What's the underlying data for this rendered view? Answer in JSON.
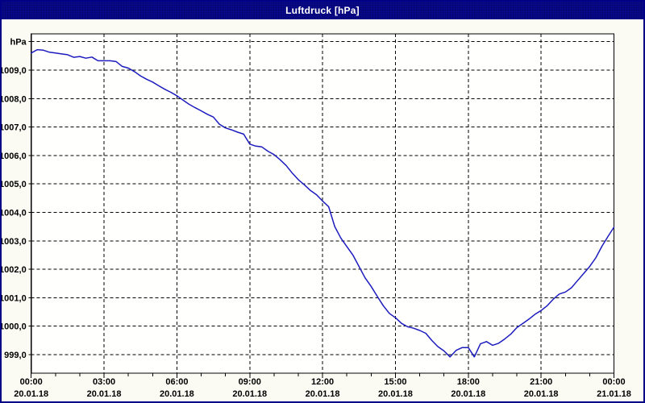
{
  "window": {
    "title": "Luftdruck [hPa]"
  },
  "colors": {
    "title_bar_bg": "#090990",
    "title_text": "#ffffff",
    "window_border": "#000086",
    "window_bg": "#fbfbf4",
    "plot_bg": "#fffffd",
    "grid": "#000000",
    "axis": "#000000",
    "line": "#1c1cbe",
    "label": "#000000"
  },
  "chart_data": {
    "type": "line",
    "title": "Luftdruck [hPa]",
    "unit_label": "hPa",
    "ylim": [
      999,
      1010
    ],
    "xlim_hours": [
      0,
      24
    ],
    "grid": "dashed",
    "legend": "none",
    "y_ticks": [
      {
        "v": 1010,
        "label": "hPa"
      },
      {
        "v": 1009,
        "label": "1009,0"
      },
      {
        "v": 1008,
        "label": "1008,0"
      },
      {
        "v": 1007,
        "label": "1007,0"
      },
      {
        "v": 1006,
        "label": "1006,0"
      },
      {
        "v": 1005,
        "label": "1005,0"
      },
      {
        "v": 1004,
        "label": "1004,0"
      },
      {
        "v": 1003,
        "label": "1003,0"
      },
      {
        "v": 1002,
        "label": "1002,0"
      },
      {
        "v": 1001,
        "label": "1001,0"
      },
      {
        "v": 1000,
        "label": "1000,0"
      },
      {
        "v": 999,
        "label": "999,0"
      }
    ],
    "x_major_ticks": [
      {
        "hour": 0,
        "time": "00:00",
        "date": "20.01.18"
      },
      {
        "hour": 3,
        "time": "03:00",
        "date": "20.01.18"
      },
      {
        "hour": 6,
        "time": "06:00",
        "date": "20.01.18"
      },
      {
        "hour": 9,
        "time": "09:00",
        "date": "20.01.18"
      },
      {
        "hour": 12,
        "time": "12:00",
        "date": "20.01.18"
      },
      {
        "hour": 15,
        "time": "15:00",
        "date": "20.01.18"
      },
      {
        "hour": 18,
        "time": "18:00",
        "date": "20.01.18"
      },
      {
        "hour": 21,
        "time": "21:00",
        "date": "20.01.18"
      },
      {
        "hour": 24,
        "time": "00:00",
        "date": "21.01.18"
      }
    ],
    "x_minor_step_hours": 1,
    "series": [
      {
        "name": "Luftdruck",
        "x_hours": [
          0,
          0.25,
          0.5,
          0.75,
          1,
          1.25,
          1.5,
          1.75,
          2,
          2.25,
          2.5,
          2.75,
          3,
          3.25,
          3.5,
          3.75,
          4,
          4.25,
          4.5,
          4.75,
          5,
          5.25,
          5.5,
          5.75,
          6,
          6.25,
          6.5,
          6.75,
          7,
          7.25,
          7.5,
          7.75,
          8,
          8.25,
          8.5,
          8.75,
          9,
          9.25,
          9.5,
          9.75,
          10,
          10.25,
          10.5,
          10.75,
          11,
          11.25,
          11.5,
          11.75,
          12,
          12.25,
          12.5,
          12.75,
          13,
          13.25,
          13.5,
          13.75,
          14,
          14.25,
          14.5,
          14.75,
          15,
          15.25,
          15.5,
          15.75,
          16,
          16.25,
          16.5,
          16.75,
          17,
          17.25,
          17.5,
          17.75,
          18,
          18.25,
          18.5,
          18.75,
          19,
          19.25,
          19.5,
          19.75,
          20,
          20.25,
          20.5,
          20.75,
          21,
          21.25,
          21.5,
          21.75,
          22,
          22.25,
          22.5,
          22.75,
          23,
          23.25,
          23.5,
          23.75,
          24
        ],
        "values": [
          1009.6,
          1009.72,
          1009.7,
          1009.63,
          1009.6,
          1009.57,
          1009.54,
          1009.45,
          1009.48,
          1009.42,
          1009.46,
          1009.33,
          1009.33,
          1009.33,
          1009.3,
          1009.13,
          1009.07,
          1008.95,
          1008.8,
          1008.68,
          1008.58,
          1008.45,
          1008.33,
          1008.22,
          1008.1,
          1007.95,
          1007.8,
          1007.68,
          1007.57,
          1007.45,
          1007.35,
          1007.1,
          1006.97,
          1006.9,
          1006.82,
          1006.75,
          1006.4,
          1006.33,
          1006.3,
          1006.15,
          1006.03,
          1005.85,
          1005.65,
          1005.38,
          1005.15,
          1004.97,
          1004.77,
          1004.62,
          1004.4,
          1004.2,
          1003.5,
          1003.1,
          1002.8,
          1002.5,
          1002.1,
          1001.7,
          1001.4,
          1001.05,
          1000.72,
          1000.45,
          1000.3,
          1000.1,
          999.98,
          999.93,
          999.85,
          999.75,
          999.5,
          999.28,
          999.13,
          998.92,
          999.15,
          999.25,
          999.25,
          998.92,
          999.38,
          999.46,
          999.33,
          999.4,
          999.55,
          999.72,
          999.95,
          1000.1,
          1000.25,
          1000.42,
          1000.55,
          1000.72,
          1000.95,
          1001.13,
          1001.2,
          1001.35,
          1001.6,
          1001.85,
          1002.1,
          1002.4,
          1002.8,
          1003.15,
          1003.48
        ]
      }
    ]
  }
}
